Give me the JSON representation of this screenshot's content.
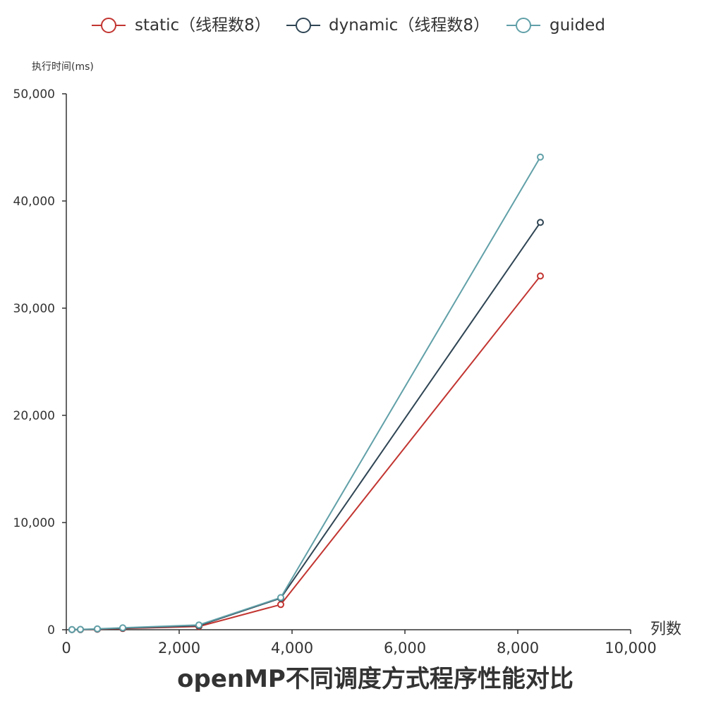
{
  "chart_data": {
    "type": "line",
    "title": "openMP不同调度方式程序性能对比",
    "xlabel": "列数",
    "ylabel": "执行时间(ms)",
    "xlim": [
      0,
      10000
    ],
    "ylim": [
      0,
      50000
    ],
    "x_ticks": [
      "0",
      "2,000",
      "4,000",
      "6,000",
      "8,000",
      "10,000"
    ],
    "y_ticks": [
      "0",
      "10,000",
      "20,000",
      "30,000",
      "40,000",
      "50,000"
    ],
    "grid": false,
    "legend_position": "top-center",
    "x": [
      100,
      250,
      550,
      1000,
      2350,
      3800,
      8400
    ],
    "series": [
      {
        "name": "static（线程数8）",
        "color": "#c23531",
        "values": [
          5,
          15,
          40,
          110,
          300,
          2350,
          33000
        ]
      },
      {
        "name": "dynamic（线程数8）",
        "color": "#2f4554",
        "values": [
          5,
          20,
          60,
          150,
          380,
          2950,
          38000
        ]
      },
      {
        "name": "guided",
        "color": "#61a0a8",
        "values": [
          10,
          30,
          80,
          180,
          450,
          3000,
          44100
        ]
      }
    ]
  }
}
